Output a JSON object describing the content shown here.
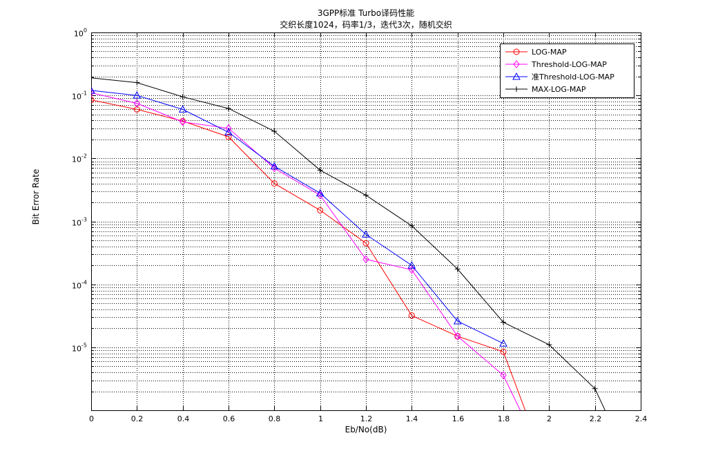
{
  "chart_data": {
    "type": "line",
    "title": "3GPP标准 Turbo译码性能",
    "subtitle": "交织长度1024，码率1/3，迭代3次，随机交织",
    "xlabel": "Eb/No(dB)",
    "ylabel": "Bit Error Rate",
    "xlim": [
      0,
      2.4
    ],
    "ylim": [
      1e-06,
      1
    ],
    "y_scale": "log",
    "x_ticks": [
      "0",
      "0.2",
      "0.4",
      "0.6",
      "0.8",
      "1",
      "1.2",
      "1.4",
      "1.6",
      "1.8",
      "2",
      "2.2",
      "2.4"
    ],
    "y_tick_base": "10",
    "y_tick_exponents": [
      "0",
      "-1",
      "-2",
      "-3",
      "-4",
      "-5"
    ],
    "grid": "dotted, major and minor",
    "legend_position": "top-right",
    "series": [
      {
        "name": "LOG-MAP",
        "color": "#ff0000",
        "marker": "circle",
        "x": [
          0,
          0.2,
          0.4,
          0.6,
          0.8,
          1.0,
          1.2,
          1.4,
          1.6,
          1.8,
          1.9
        ],
        "y": [
          0.085,
          0.06,
          0.039,
          0.022,
          0.004,
          0.0015,
          0.00045,
          3.2e-05,
          1.5e-05,
          8.5e-06,
          9e-07
        ]
      },
      {
        "name": "Threshold-LOG-MAP",
        "color": "#ff00ff",
        "marker": "diamond",
        "x": [
          0,
          0.2,
          0.4,
          0.6,
          0.8,
          1.0,
          1.2,
          1.4,
          1.6,
          1.8,
          1.88
        ],
        "y": [
          0.11,
          0.075,
          0.038,
          0.03,
          0.007,
          0.0026,
          0.00025,
          0.00017,
          1.5e-05,
          3.6e-06,
          9e-07
        ]
      },
      {
        "name": "准Threshold-LOG-MAP",
        "color": "#0000ff",
        "marker": "triangle",
        "x": [
          0,
          0.2,
          0.4,
          0.6,
          0.8,
          1.0,
          1.2,
          1.4,
          1.6,
          1.8
        ],
        "y": [
          0.12,
          0.1,
          0.06,
          0.026,
          0.0075,
          0.0028,
          0.00062,
          0.0002,
          2.6e-05,
          1.15e-05
        ]
      },
      {
        "name": "MAX-LOG-MAP",
        "color": "#000000",
        "marker": "plus",
        "x": [
          0,
          0.2,
          0.4,
          0.6,
          0.8,
          1.0,
          1.2,
          1.4,
          1.6,
          1.8,
          2.0,
          2.2,
          2.25
        ],
        "y": [
          0.19,
          0.16,
          0.095,
          0.062,
          0.027,
          0.0065,
          0.0026,
          0.00085,
          0.000175,
          2.5e-05,
          1.1e-05,
          2.2e-06,
          9e-07
        ]
      }
    ]
  }
}
